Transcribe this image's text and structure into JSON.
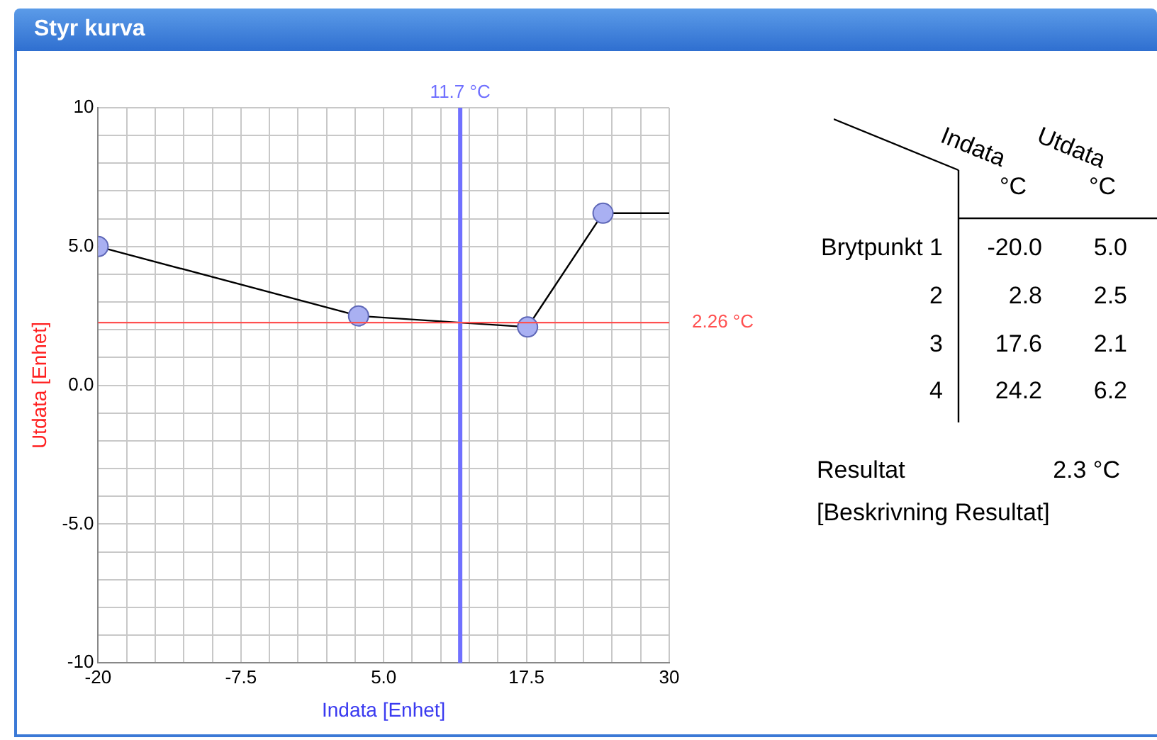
{
  "chart_data": {
    "type": "line",
    "title": "Styr kurva",
    "xlabel": "Indata [Enhet]",
    "ylabel": "Utdata [Enhet]",
    "series": [
      {
        "color": "#000000",
        "x": [
          -20,
          2.8,
          17.6,
          24.2
        ],
        "values": [
          5.0,
          2.5,
          2.1,
          6.2
        ],
        "marker": "circle"
      },
      {
        "color": "#000000",
        "x": [
          24.2,
          30
        ],
        "values": [
          6.2,
          6.2
        ],
        "marker": "none"
      }
    ],
    "xlim": [
      -20,
      30
    ],
    "xticks": [
      -20,
      {
        "value": -17.5,
        "label": null
      },
      {
        "value": -15,
        "label": null
      },
      {
        "value": -12.5,
        "label": null
      },
      {
        "value": -10,
        "label": null
      },
      -7.5,
      {
        "value": -5,
        "label": null
      },
      {
        "value": -2.5,
        "label": null
      },
      {
        "value": 0,
        "label": null
      },
      {
        "value": 2.5,
        "label": null
      },
      {
        "value": 5,
        "label": "5.0"
      },
      {
        "value": 7.5,
        "label": null
      },
      {
        "value": 10,
        "label": null
      },
      {
        "value": 12.5,
        "label": null
      },
      {
        "value": 15,
        "label": null
      },
      17.5,
      {
        "value": 20,
        "label": null
      },
      {
        "value": 22.5,
        "label": null
      },
      {
        "value": 25,
        "label": null
      },
      {
        "value": 27.5,
        "label": null
      },
      30
    ],
    "ylim": [
      -10,
      10
    ],
    "yticks": [
      -10,
      {
        "value": -9,
        "label": null
      },
      {
        "value": -8,
        "label": null
      },
      {
        "value": -7,
        "label": null
      },
      {
        "value": -6,
        "label": null
      },
      {
        "value": -5,
        "label": "-5.0"
      },
      {
        "value": -4,
        "label": null
      },
      {
        "value": -3,
        "label": null
      },
      {
        "value": -2,
        "label": null
      },
      {
        "value": -1,
        "label": null
      },
      {
        "value": 0,
        "label": "0.0"
      },
      {
        "value": 1,
        "label": null
      },
      {
        "value": 2,
        "label": null
      },
      {
        "value": 3,
        "label": null
      },
      {
        "value": 4,
        "label": null
      },
      {
        "value": 5,
        "label": "5.0"
      },
      {
        "value": 6,
        "label": null
      },
      {
        "value": 7,
        "label": null
      },
      {
        "value": 8,
        "label": null
      },
      {
        "value": 9,
        "label": null
      },
      10
    ],
    "grid": true,
    "legend": false,
    "ref_lines": [
      {
        "axis": "x",
        "value": 11.7,
        "label": "11.7 °C",
        "color": "#7070ff"
      },
      {
        "axis": "y",
        "value": 2.26,
        "label": "2.26 °C",
        "color": "#ff5050"
      }
    ],
    "annotations": [
      "Indata",
      "Utdata",
      "°C",
      "°C",
      "Brytpunkt 1",
      "-20.0",
      "5.0",
      "2",
      "2.8",
      "2.5",
      "3",
      "17.6",
      "2.1",
      "4",
      "24.2",
      "6.2",
      "Resultat",
      "2.3 °C",
      "[Beskrivning Resultat]"
    ]
  }
}
